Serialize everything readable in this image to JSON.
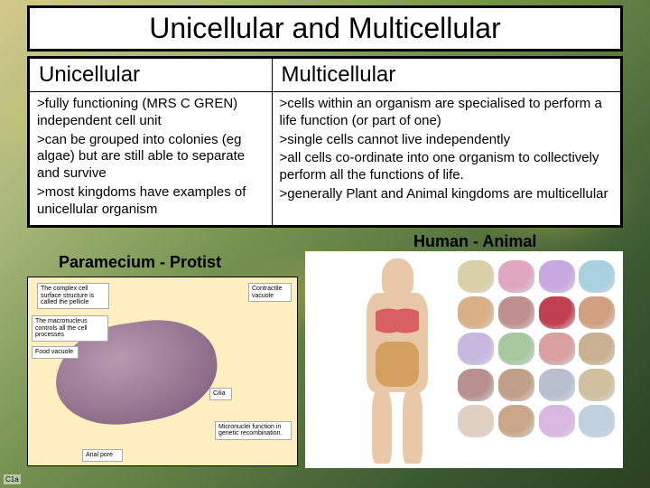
{
  "title": "Unicellular and Multicellular",
  "columns": {
    "left": {
      "header": "Unicellular",
      "points": [
        ">fully functioning (MRS C GREN) independent cell unit",
        ">can be grouped into colonies (eg algae) but are still able to separate and survive",
        ">most kingdoms have examples of unicellular organism"
      ]
    },
    "right": {
      "header": "Multicellular",
      "points": [
        ">cells within an organism are specialised to perform a life function (or part of one)",
        ">single cells cannot live independently",
        ">all cells co-ordinate into one organism to collectively perform all the functions of life.",
        ">generally Plant and Animal kingdoms are multicellular"
      ]
    }
  },
  "captions": {
    "left": "Paramecium - Protist",
    "right": "Human - Animal"
  },
  "paramecium_labels": {
    "surface": "The complex cell surface structure is called the pellicle",
    "vacuole": "Contractile vacuole",
    "macronucleus": "The macronucleus controls all the cell processes",
    "food": "Food vacuole",
    "micronuclei": "Micronuclei function in genetic recombination.",
    "cilia": "Cilia",
    "pore": "Anal pore"
  },
  "organ_colors": [
    "#d9cfa8",
    "#e0a8c0",
    "#c8a8e0",
    "#a8d0e0",
    "#d9b088",
    "#c09090",
    "#c04050",
    "#d0a080",
    "#c8b8e0",
    "#a8c8a0",
    "#d8a0a0",
    "#c8b090",
    "#b89090",
    "#c0a088",
    "#b8c0d0",
    "#d0c0a0",
    "#e0d0c0",
    "#c8a888",
    "#d8b8e0",
    "#c0d0e0"
  ],
  "footer": "C1a"
}
